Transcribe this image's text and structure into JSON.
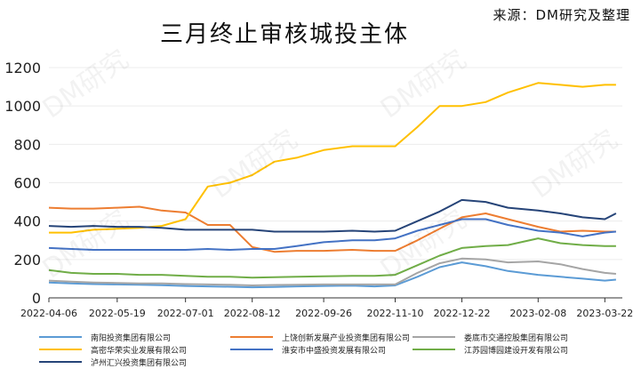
{
  "header": {
    "title": "三月终止审核城投主体",
    "source": "来源：DM研究及整理"
  },
  "watermark": "DM研究",
  "chart_data": {
    "type": "line",
    "title": "三月终止审核城投主体",
    "ylim": [
      0,
      1200
    ],
    "yticks": [
      0,
      200,
      400,
      600,
      800,
      1000,
      1200
    ],
    "xtick_labels": [
      "2022-04-06",
      "2022-05-19",
      "2022-07-01",
      "2022-08-12",
      "2022-09-26",
      "2022-11-10",
      "2022-12-22",
      "2023-02-08",
      "2023-03-22"
    ],
    "x": [
      "2022-04-06",
      "2022-04-20",
      "2022-05-04",
      "2022-05-19",
      "2022-06-02",
      "2022-06-16",
      "2022-07-01",
      "2022-07-15",
      "2022-07-29",
      "2022-08-12",
      "2022-08-26",
      "2022-09-09",
      "2022-09-26",
      "2022-10-14",
      "2022-10-28",
      "2022-11-10",
      "2022-11-24",
      "2022-12-08",
      "2022-12-22",
      "2023-01-06",
      "2023-01-20",
      "2023-02-08",
      "2023-02-22",
      "2023-03-08",
      "2023-03-22",
      "2023-03-29"
    ],
    "series": [
      {
        "name": "南阳投资集团有限公司",
        "color": "#5b9bd5",
        "values": [
          80,
          75,
          72,
          70,
          68,
          66,
          62,
          60,
          58,
          55,
          57,
          60,
          62,
          64,
          60,
          65,
          110,
          160,
          185,
          165,
          140,
          120,
          110,
          100,
          90,
          95
        ]
      },
      {
        "name": "上饶创新发展产业投资集团有限公司",
        "color": "#ed7d31",
        "values": [
          470,
          465,
          465,
          470,
          475,
          455,
          445,
          380,
          380,
          265,
          240,
          245,
          245,
          250,
          245,
          245,
          300,
          360,
          420,
          440,
          410,
          370,
          345,
          350,
          345,
          345
        ]
      },
      {
        "name": "娄底市交通控股集团有限公司",
        "color": "#a5a5a5",
        "values": [
          90,
          85,
          80,
          78,
          75,
          75,
          72,
          70,
          68,
          65,
          67,
          68,
          70,
          70,
          70,
          70,
          130,
          180,
          205,
          200,
          185,
          190,
          175,
          150,
          130,
          125
        ]
      },
      {
        "name": "高密华荣实业发展有限公司",
        "color": "#ffc000",
        "values": [
          340,
          340,
          355,
          360,
          365,
          375,
          410,
          580,
          600,
          640,
          710,
          730,
          770,
          790,
          790,
          790,
          890,
          1000,
          1000,
          1020,
          1070,
          1120,
          1110,
          1100,
          1110,
          1110
        ]
      },
      {
        "name": "淮安市中盛投资发展有限公司",
        "color": "#4472c4",
        "values": [
          260,
          255,
          250,
          250,
          250,
          250,
          250,
          255,
          250,
          255,
          255,
          270,
          290,
          300,
          300,
          310,
          350,
          380,
          410,
          410,
          380,
          350,
          340,
          320,
          340,
          345
        ]
      },
      {
        "name": "江苏园博园建设开发有限公司",
        "color": "#70ad47",
        "values": [
          145,
          130,
          125,
          125,
          120,
          120,
          115,
          110,
          110,
          105,
          108,
          110,
          112,
          115,
          115,
          120,
          170,
          220,
          260,
          270,
          275,
          310,
          285,
          275,
          270,
          270
        ]
      },
      {
        "name": "泸州汇兴投资集团有限公司",
        "color": "#264478",
        "values": [
          375,
          370,
          375,
          370,
          370,
          365,
          355,
          355,
          355,
          355,
          345,
          345,
          345,
          350,
          345,
          350,
          400,
          450,
          510,
          500,
          470,
          455,
          440,
          420,
          410,
          440
        ]
      }
    ]
  }
}
